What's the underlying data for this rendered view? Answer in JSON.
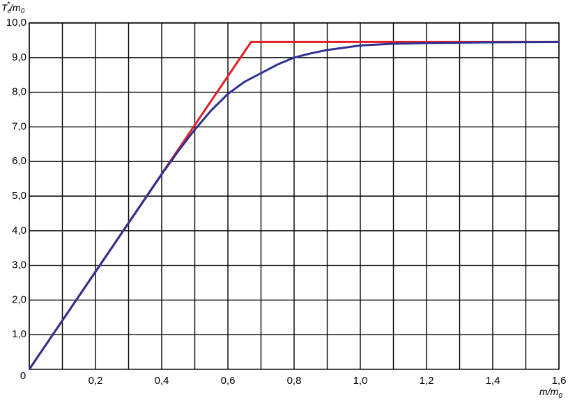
{
  "chart_data": {
    "type": "line",
    "ylabel": [
      "T",
      "e",
      "*",
      "/m",
      "0"
    ],
    "xlabel": [
      "m/m",
      "0"
    ],
    "xlim": [
      0,
      1.6
    ],
    "ylim": [
      0,
      10
    ],
    "xticks": [
      {
        "value": 0,
        "label": "0"
      },
      {
        "value": 0.2,
        "label": "0,2"
      },
      {
        "value": 0.4,
        "label": "0,4"
      },
      {
        "value": 0.6,
        "label": "0,6"
      },
      {
        "value": 0.8,
        "label": "0,8"
      },
      {
        "value": 1.0,
        "label": "1,0"
      },
      {
        "value": 1.2,
        "label": "1,2"
      },
      {
        "value": 1.4,
        "label": "1,4"
      },
      {
        "value": 1.6,
        "label": "1,6"
      }
    ],
    "x_minor_ticks": [
      0.1,
      0.3,
      0.5,
      0.7,
      0.9,
      1.1,
      1.3,
      1.5
    ],
    "yticks": [
      {
        "value": 1,
        "label": "1,0"
      },
      {
        "value": 2,
        "label": "2,0"
      },
      {
        "value": 3,
        "label": "3,0"
      },
      {
        "value": 4,
        "label": "4,0"
      },
      {
        "value": 5,
        "label": "5,0"
      },
      {
        "value": 6,
        "label": "6,0"
      },
      {
        "value": 7,
        "label": "7,0"
      },
      {
        "value": 8,
        "label": "8,0"
      },
      {
        "value": 9,
        "label": "9,0"
      },
      {
        "value": 10,
        "label": "10,0"
      }
    ],
    "grid": true,
    "series": [
      {
        "color": "#e31e24",
        "x": [
          0,
          0.67,
          1.6
        ],
        "values": [
          0,
          9.45,
          9.45
        ]
      },
      {
        "color": "#2e3192",
        "x": [
          0,
          0.4,
          0.45,
          0.5,
          0.55,
          0.6,
          0.65,
          0.7,
          0.75,
          0.8,
          0.85,
          0.9,
          1.0,
          1.1,
          1.2,
          1.4,
          1.6
        ],
        "values": [
          0,
          5.63,
          6.3,
          6.92,
          7.48,
          7.95,
          8.3,
          8.55,
          8.8,
          9.0,
          9.12,
          9.22,
          9.35,
          9.4,
          9.42,
          9.44,
          9.45
        ]
      }
    ]
  }
}
